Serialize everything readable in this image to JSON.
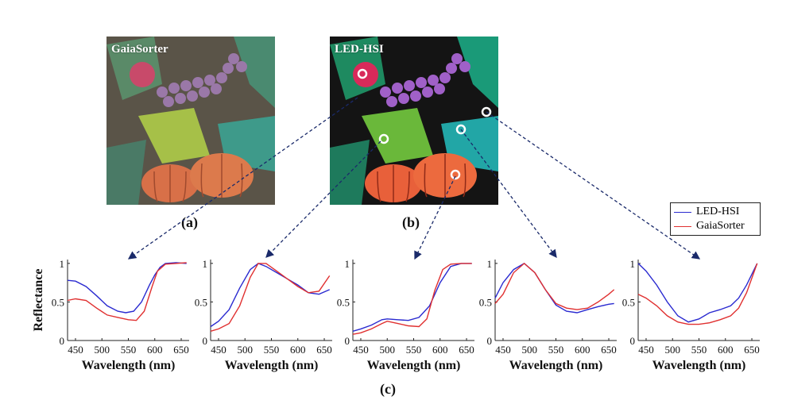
{
  "panels": {
    "a": {
      "title": "GaiaSorter",
      "caption": "(a)"
    },
    "b": {
      "title": "LED-HSI",
      "caption": "(b)"
    },
    "c": {
      "caption": "(c)"
    }
  },
  "legend": {
    "entries": [
      {
        "label": "LED-HSI",
        "color": "#2a2ad0"
      },
      {
        "label": "GaiaSorter",
        "color": "#e03030"
      }
    ]
  },
  "chart_data": [
    {
      "type": "line",
      "xlabel": "Wavelength (nm)",
      "ylabel": "Reflectance",
      "xticks": [
        450,
        500,
        550,
        600,
        650
      ],
      "yticks": [
        0,
        0.5,
        1
      ],
      "xlim": [
        435,
        665
      ],
      "ylim": [
        0,
        1.05
      ],
      "series": [
        {
          "name": "LED-HSI",
          "x": [
            435,
            450,
            470,
            490,
            510,
            530,
            545,
            560,
            575,
            590,
            600,
            610,
            620,
            640,
            660
          ],
          "y": [
            0.78,
            0.77,
            0.7,
            0.58,
            0.45,
            0.38,
            0.36,
            0.38,
            0.5,
            0.72,
            0.85,
            0.95,
            1.0,
            1.01,
            1.0
          ]
        },
        {
          "name": "GaiaSorter",
          "x": [
            435,
            450,
            470,
            490,
            510,
            530,
            550,
            565,
            580,
            595,
            605,
            620,
            640,
            660
          ],
          "y": [
            0.52,
            0.54,
            0.52,
            0.42,
            0.33,
            0.3,
            0.27,
            0.26,
            0.38,
            0.7,
            0.9,
            0.99,
            1.0,
            1.01
          ]
        }
      ]
    },
    {
      "type": "line",
      "xlabel": "Wavelength (nm)",
      "ylabel": "",
      "xticks": [
        450,
        500,
        550,
        600,
        650
      ],
      "yticks": [
        0,
        0.5,
        1
      ],
      "xlim": [
        435,
        665
      ],
      "ylim": [
        0,
        1.05
      ],
      "series": [
        {
          "name": "LED-HSI",
          "x": [
            435,
            450,
            470,
            490,
            510,
            525,
            540,
            560,
            580,
            600,
            620,
            640,
            660
          ],
          "y": [
            0.18,
            0.25,
            0.4,
            0.68,
            0.92,
            1.0,
            0.96,
            0.88,
            0.8,
            0.72,
            0.62,
            0.6,
            0.66
          ]
        },
        {
          "name": "GaiaSorter",
          "x": [
            435,
            450,
            470,
            490,
            510,
            525,
            540,
            560,
            580,
            600,
            620,
            640,
            660
          ],
          "y": [
            0.12,
            0.15,
            0.22,
            0.45,
            0.82,
            1.0,
            1.0,
            0.9,
            0.8,
            0.7,
            0.62,
            0.64,
            0.84
          ]
        }
      ]
    },
    {
      "type": "line",
      "xlabel": "Wavelength (nm)",
      "ylabel": "",
      "xticks": [
        450,
        500,
        550,
        600,
        650
      ],
      "yticks": [
        0,
        0.5,
        1
      ],
      "xlim": [
        435,
        665
      ],
      "ylim": [
        0,
        1.05
      ],
      "series": [
        {
          "name": "LED-HSI",
          "x": [
            435,
            450,
            470,
            490,
            500,
            520,
            540,
            560,
            580,
            600,
            620,
            640,
            660
          ],
          "y": [
            0.12,
            0.15,
            0.2,
            0.27,
            0.28,
            0.27,
            0.26,
            0.3,
            0.45,
            0.75,
            0.96,
            1.0,
            1.0
          ]
        },
        {
          "name": "GaiaSorter",
          "x": [
            435,
            450,
            470,
            490,
            500,
            520,
            540,
            560,
            575,
            590,
            605,
            620,
            640,
            660
          ],
          "y": [
            0.08,
            0.1,
            0.15,
            0.22,
            0.25,
            0.22,
            0.19,
            0.18,
            0.28,
            0.65,
            0.92,
            0.99,
            1.0,
            1.0
          ]
        }
      ]
    },
    {
      "type": "line",
      "xlabel": "Wavelength (nm)",
      "ylabel": "",
      "xticks": [
        450,
        500,
        550,
        600,
        650
      ],
      "yticks": [
        0,
        0.5,
        1
      ],
      "xlim": [
        435,
        665
      ],
      "ylim": [
        0,
        1.05
      ],
      "series": [
        {
          "name": "LED-HSI",
          "x": [
            435,
            450,
            470,
            490,
            510,
            530,
            550,
            570,
            590,
            610,
            630,
            650,
            660
          ],
          "y": [
            0.55,
            0.75,
            0.92,
            1.0,
            0.88,
            0.66,
            0.46,
            0.38,
            0.36,
            0.4,
            0.44,
            0.47,
            0.48
          ]
        },
        {
          "name": "GaiaSorter",
          "x": [
            435,
            450,
            470,
            490,
            510,
            530,
            550,
            570,
            590,
            610,
            630,
            650,
            660
          ],
          "y": [
            0.48,
            0.6,
            0.88,
            1.0,
            0.88,
            0.66,
            0.48,
            0.42,
            0.4,
            0.42,
            0.5,
            0.6,
            0.66
          ]
        }
      ]
    },
    {
      "type": "line",
      "xlabel": "Wavelength (nm)",
      "ylabel": "",
      "xticks": [
        450,
        500,
        550,
        600,
        650
      ],
      "yticks": [
        0,
        0.5,
        1
      ],
      "xlim": [
        435,
        665
      ],
      "ylim": [
        0,
        1.05
      ],
      "series": [
        {
          "name": "LED-HSI",
          "x": [
            435,
            450,
            470,
            490,
            510,
            530,
            550,
            570,
            590,
            610,
            625,
            640,
            660
          ],
          "y": [
            1.0,
            0.9,
            0.72,
            0.5,
            0.32,
            0.24,
            0.28,
            0.36,
            0.4,
            0.45,
            0.55,
            0.72,
            1.0
          ]
        },
        {
          "name": "GaiaSorter",
          "x": [
            435,
            450,
            470,
            490,
            510,
            530,
            550,
            570,
            590,
            610,
            625,
            640,
            660
          ],
          "y": [
            0.6,
            0.55,
            0.45,
            0.32,
            0.24,
            0.21,
            0.21,
            0.23,
            0.27,
            0.32,
            0.42,
            0.62,
            1.0
          ]
        }
      ]
    }
  ]
}
